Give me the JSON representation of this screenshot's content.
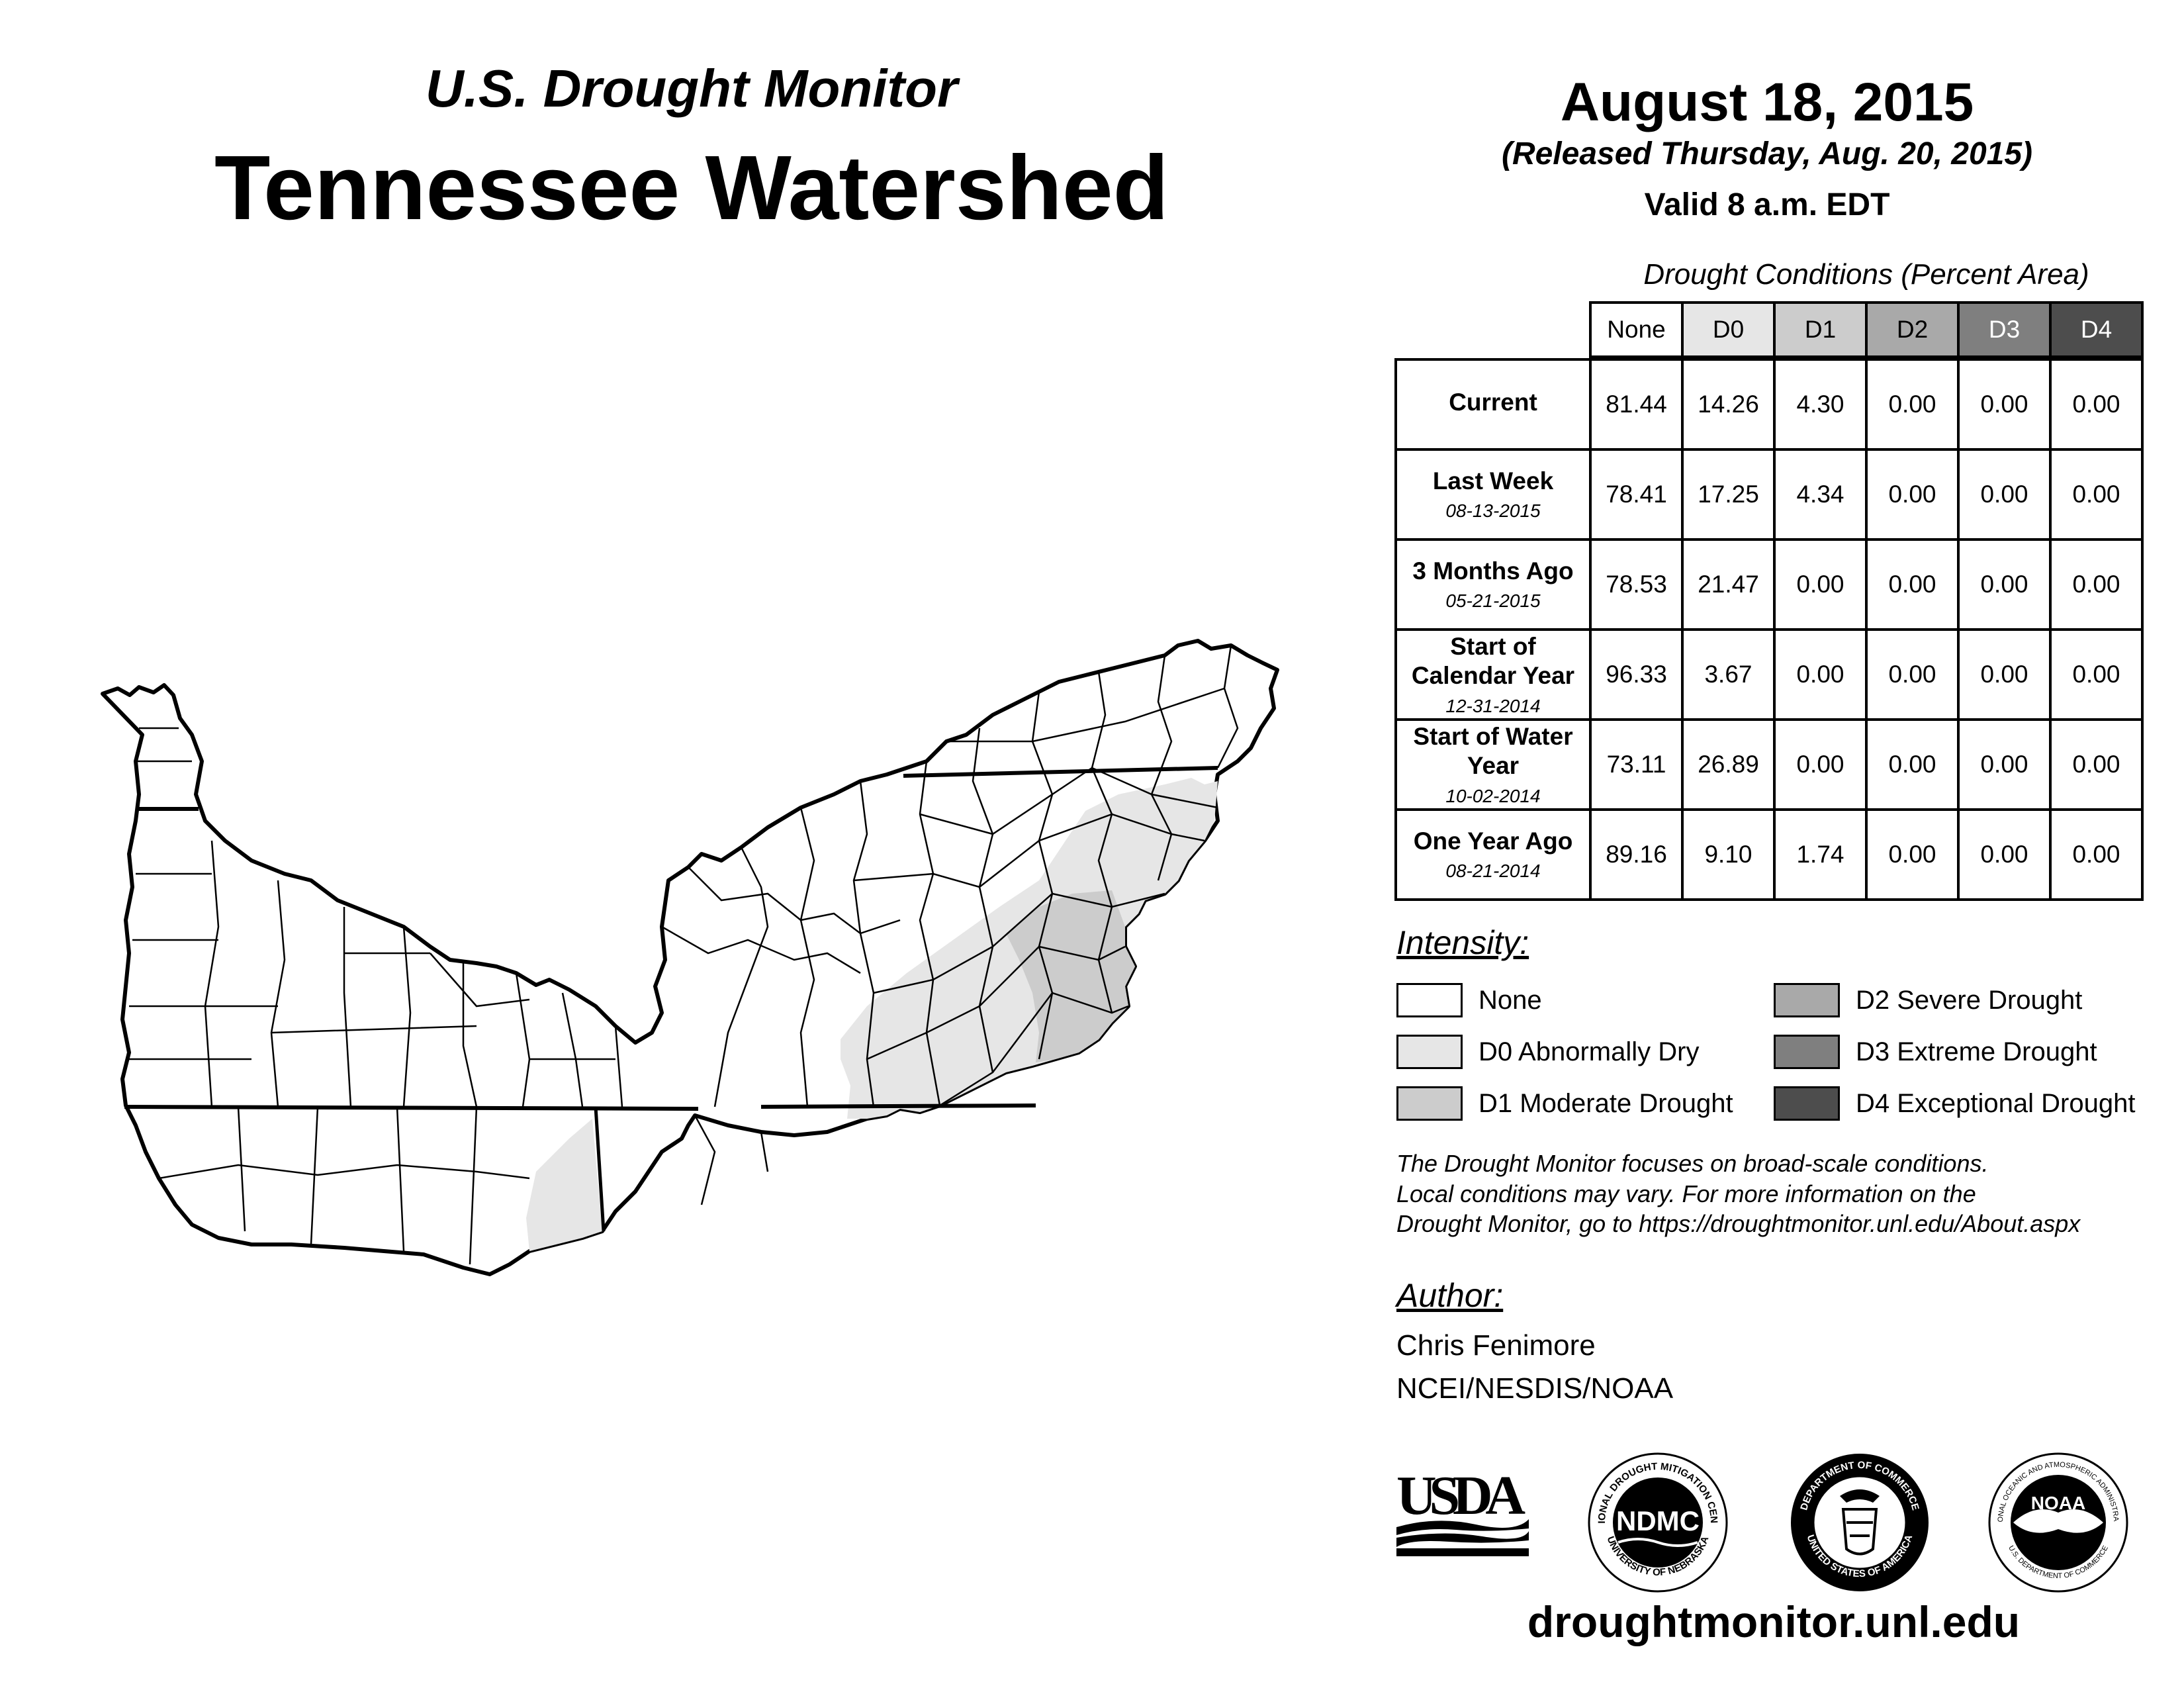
{
  "header": {
    "super_title": "U.S. Drought Monitor",
    "title": "Tennessee Watershed",
    "date": "August 18, 2015",
    "released": "(Released Thursday, Aug. 20, 2015)",
    "valid": "Valid 8 a.m. EDT"
  },
  "conditions_table": {
    "caption": "Drought Conditions (Percent Area)",
    "columns": [
      "None",
      "D0",
      "D1",
      "D2",
      "D3",
      "D4"
    ],
    "column_colors": [
      "#ffffff",
      "#e6e6e6",
      "#cccccc",
      "#a9a9a9",
      "#7f7f7f",
      "#4d4d4d"
    ],
    "rows": [
      {
        "label": "Current",
        "date": "",
        "values": [
          "81.44",
          "14.26",
          "4.30",
          "0.00",
          "0.00",
          "0.00"
        ]
      },
      {
        "label": "Last Week",
        "date": "08-13-2015",
        "values": [
          "78.41",
          "17.25",
          "4.34",
          "0.00",
          "0.00",
          "0.00"
        ]
      },
      {
        "label": "3 Months Ago",
        "date": "05-21-2015",
        "values": [
          "78.53",
          "21.47",
          "0.00",
          "0.00",
          "0.00",
          "0.00"
        ]
      },
      {
        "label": "Start of Calendar Year",
        "date": "12-31-2014",
        "values": [
          "96.33",
          "3.67",
          "0.00",
          "0.00",
          "0.00",
          "0.00"
        ]
      },
      {
        "label": "Start of Water Year",
        "date": "10-02-2014",
        "values": [
          "73.11",
          "26.89",
          "0.00",
          "0.00",
          "0.00",
          "0.00"
        ]
      },
      {
        "label": "One Year Ago",
        "date": "08-21-2014",
        "values": [
          "89.16",
          "9.10",
          "1.74",
          "0.00",
          "0.00",
          "0.00"
        ]
      }
    ]
  },
  "legend": {
    "title": "Intensity:",
    "items": [
      {
        "label": "None",
        "color": "#ffffff"
      },
      {
        "label": "D0 Abnormally Dry",
        "color": "#e6e6e6"
      },
      {
        "label": "D1 Moderate Drought",
        "color": "#cccccc"
      },
      {
        "label": "D2 Severe Drought",
        "color": "#a9a9a9"
      },
      {
        "label": "D3 Extreme Drought",
        "color": "#7f7f7f"
      },
      {
        "label": "D4 Exceptional Drought",
        "color": "#4d4d4d"
      }
    ]
  },
  "note": {
    "line1": "The Drought Monitor focuses on broad-scale conditions.",
    "line2": "Local conditions may vary. For more information on the",
    "line3": "Drought Monitor, go to https://droughtmonitor.unl.edu/About.aspx"
  },
  "author": {
    "title": "Author:",
    "name": "Chris Fenimore",
    "org": "NCEI/NESDIS/NOAA"
  },
  "logos": {
    "usda": "USDA",
    "ndmc": "NDMC",
    "ndmc_ring_top": "NATIONAL DROUGHT MITIGATION CENTER",
    "ndmc_ring_bottom": "UNIVERSITY OF NEBRASKA",
    "doc_ring_top": "DEPARTMENT OF COMMERCE",
    "doc_ring_bottom": "UNITED STATES OF AMERICA",
    "noaa": "NOAA",
    "noaa_ring_top": "NATIONAL OCEANIC AND ATMOSPHERIC ADMINISTRATION",
    "noaa_ring_bottom": "U.S. DEPARTMENT OF COMMERCE"
  },
  "footer": {
    "site": "droughtmonitor.unl.edu"
  }
}
